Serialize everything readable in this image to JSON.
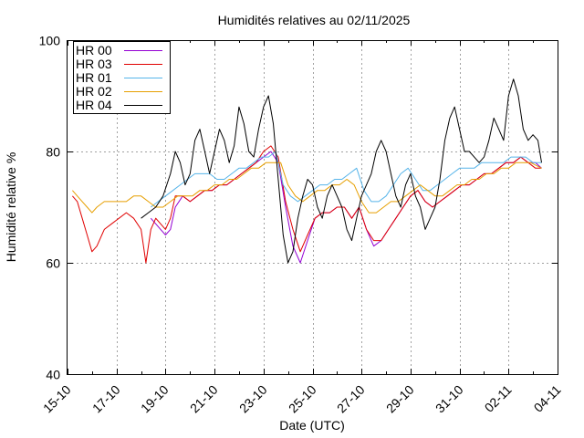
{
  "chart_data": {
    "type": "line",
    "title": "Humidités relatives  au 02/11/2025",
    "xlabel": "Date (UTC)",
    "ylabel": "Humidité relative %",
    "ylim": [
      40,
      100
    ],
    "xlim_days": [
      0,
      20
    ],
    "yticks": [
      40,
      60,
      80,
      100
    ],
    "xticks": [
      {
        "day": 0,
        "label": "15-10"
      },
      {
        "day": 2,
        "label": "17-10"
      },
      {
        "day": 4,
        "label": "19-10"
      },
      {
        "day": 6,
        "label": "21-10"
      },
      {
        "day": 8,
        "label": "23-10"
      },
      {
        "day": 10,
        "label": "25-10"
      },
      {
        "day": 12,
        "label": "27-10"
      },
      {
        "day": 14,
        "label": "29-10"
      },
      {
        "day": 16,
        "label": "31-10"
      },
      {
        "day": 18,
        "label": "02-11"
      },
      {
        "day": 20,
        "label": "04-11"
      }
    ],
    "grid": true,
    "legend_position": "top-left",
    "series": [
      {
        "name": "HR 00",
        "color": "#9400d3",
        "x": [
          3.4,
          3.6,
          3.8,
          4.0,
          4.2,
          4.4,
          4.7,
          5.0,
          5.3,
          5.6,
          5.9,
          6.2,
          6.5,
          6.8,
          7.1,
          7.4,
          7.7,
          8.0,
          8.3,
          8.6,
          8.9,
          9.2,
          9.5,
          9.8,
          10.1,
          10.4,
          10.7,
          11.0,
          11.3,
          11.6,
          11.9,
          12.2,
          12.5,
          12.8,
          13.1,
          13.4,
          13.7,
          14.0,
          14.3,
          14.6,
          14.9,
          15.2,
          15.5,
          15.8,
          16.1,
          16.4,
          16.7,
          17.0,
          17.3,
          17.6,
          17.9,
          18.2,
          18.5,
          18.8,
          19.1,
          19.35
        ],
        "y": [
          68,
          67,
          66,
          65,
          66,
          70,
          72,
          71,
          72,
          73,
          73,
          74,
          74,
          75,
          76,
          77,
          78,
          79,
          80,
          78,
          70,
          63,
          60,
          64,
          68,
          69,
          69,
          70,
          70,
          68,
          70,
          66,
          63,
          64,
          66,
          68,
          70,
          72,
          73,
          71,
          70,
          71,
          72,
          73,
          74,
          74,
          75,
          76,
          76,
          77,
          78,
          78,
          79,
          78,
          78,
          77
        ]
      },
      {
        "name": "HR 03",
        "color": "#e00000",
        "x": [
          0.2,
          0.4,
          0.6,
          0.8,
          1.0,
          1.2,
          1.5,
          1.8,
          2.1,
          2.4,
          2.7,
          3.0,
          3.2,
          3.4,
          3.6,
          3.8,
          4.0,
          4.2,
          4.4,
          4.7,
          5.0,
          5.3,
          5.6,
          5.9,
          6.2,
          6.5,
          6.8,
          7.1,
          7.4,
          7.7,
          8.0,
          8.3,
          8.6,
          8.9,
          9.2,
          9.5,
          9.8,
          10.1,
          10.4,
          10.7,
          11.0,
          11.3,
          11.6,
          11.9,
          12.2,
          12.5,
          12.8,
          13.1,
          13.4,
          13.7,
          14.0,
          14.3,
          14.6,
          14.9,
          15.2,
          15.5,
          15.8,
          16.1,
          16.4,
          16.7,
          17.0,
          17.3,
          17.6,
          17.9,
          18.2,
          18.5,
          18.8,
          19.1,
          19.35
        ],
        "y": [
          72,
          71,
          68,
          65,
          62,
          63,
          66,
          67,
          68,
          69,
          68,
          66,
          60,
          66,
          68,
          67,
          66,
          68,
          72,
          72,
          71,
          72,
          73,
          73,
          74,
          74,
          75,
          76,
          77,
          78,
          80,
          81,
          79,
          71,
          66,
          62,
          65,
          68,
          69,
          69,
          70,
          70,
          68,
          70,
          66,
          64,
          64,
          66,
          68,
          70,
          72,
          73,
          71,
          70,
          71,
          72,
          73,
          74,
          74,
          75,
          76,
          76,
          77,
          78,
          78,
          79,
          78,
          77,
          77
        ]
      },
      {
        "name": "HR 01",
        "color": "#56b4e9",
        "x": [
          3.4,
          3.7,
          4.0,
          4.3,
          4.6,
          4.9,
          5.2,
          5.5,
          5.8,
          6.1,
          6.4,
          6.7,
          7.0,
          7.3,
          7.6,
          7.9,
          8.2,
          8.5,
          8.8,
          9.1,
          9.4,
          9.7,
          10.0,
          10.3,
          10.6,
          10.9,
          11.2,
          11.5,
          11.8,
          12.1,
          12.4,
          12.7,
          13.0,
          13.3,
          13.6,
          13.9,
          14.2,
          14.5,
          14.8,
          15.1,
          15.4,
          15.7,
          16.0,
          16.3,
          16.6,
          16.9,
          17.2,
          17.5,
          17.8,
          18.1,
          18.4,
          18.7,
          19.0,
          19.35
        ],
        "y": [
          70,
          71,
          72,
          73,
          74,
          75,
          76,
          76,
          76,
          75,
          75,
          76,
          77,
          77,
          78,
          79,
          79,
          80,
          74,
          72,
          71,
          72,
          73,
          74,
          74,
          75,
          75,
          76,
          77,
          73,
          71,
          71,
          72,
          74,
          76,
          77,
          75,
          73,
          73,
          74,
          75,
          76,
          77,
          77,
          77,
          78,
          78,
          78,
          78,
          79,
          79,
          79,
          78,
          78
        ]
      },
      {
        "name": "HR 02",
        "color": "#e69f00",
        "x": [
          0.2,
          0.4,
          0.6,
          0.8,
          1.0,
          1.2,
          1.5,
          1.8,
          2.1,
          2.4,
          2.7,
          3.0,
          3.3,
          3.6,
          3.9,
          4.2,
          4.5,
          4.8,
          5.1,
          5.4,
          5.7,
          6.0,
          6.3,
          6.6,
          6.9,
          7.2,
          7.5,
          7.8,
          8.1,
          8.4,
          8.7,
          9.0,
          9.3,
          9.6,
          9.9,
          10.2,
          10.5,
          10.8,
          11.1,
          11.4,
          11.7,
          12.0,
          12.3,
          12.6,
          12.9,
          13.2,
          13.5,
          13.8,
          14.1,
          14.4,
          14.7,
          15.0,
          15.3,
          15.6,
          15.9,
          16.2,
          16.5,
          16.8,
          17.1,
          17.4,
          17.7,
          18.0,
          18.3,
          18.6,
          18.9,
          19.35
        ],
        "y": [
          73,
          72,
          71,
          70,
          69,
          70,
          71,
          71,
          71,
          71,
          72,
          72,
          71,
          70,
          70,
          71,
          72,
          72,
          72,
          73,
          73,
          74,
          74,
          75,
          75,
          76,
          77,
          77,
          78,
          78,
          78,
          74,
          72,
          71,
          72,
          73,
          73,
          74,
          74,
          75,
          74,
          71,
          69,
          69,
          70,
          71,
          71,
          72,
          73,
          74,
          73,
          72,
          72,
          73,
          74,
          74,
          75,
          75,
          76,
          76,
          77,
          77,
          78,
          78,
          78,
          77
        ]
      },
      {
        "name": "HR 04",
        "color": "#000000",
        "x": [
          3.0,
          3.3,
          3.6,
          3.9,
          4.2,
          4.4,
          4.6,
          4.8,
          5.0,
          5.2,
          5.4,
          5.6,
          5.8,
          6.0,
          6.2,
          6.4,
          6.6,
          6.8,
          7.0,
          7.2,
          7.4,
          7.6,
          7.8,
          8.0,
          8.2,
          8.4,
          8.6,
          8.8,
          9.0,
          9.2,
          9.4,
          9.6,
          9.8,
          10.0,
          10.2,
          10.4,
          10.6,
          10.8,
          11.0,
          11.2,
          11.4,
          11.6,
          11.8,
          12.0,
          12.2,
          12.4,
          12.6,
          12.8,
          13.0,
          13.2,
          13.4,
          13.6,
          13.8,
          14.0,
          14.2,
          14.4,
          14.6,
          14.8,
          15.0,
          15.2,
          15.4,
          15.6,
          15.8,
          16.0,
          16.2,
          16.4,
          16.6,
          16.8,
          17.0,
          17.2,
          17.4,
          17.6,
          17.8,
          18.0,
          18.2,
          18.4,
          18.6,
          18.8,
          19.0,
          19.2,
          19.35
        ],
        "y": [
          68,
          69,
          70,
          72,
          76,
          80,
          78,
          74,
          76,
          82,
          84,
          80,
          76,
          80,
          84,
          82,
          78,
          81,
          88,
          85,
          80,
          79,
          84,
          88,
          90,
          85,
          75,
          65,
          60,
          62,
          68,
          72,
          75,
          74,
          70,
          68,
          72,
          74,
          72,
          70,
          66,
          64,
          68,
          72,
          74,
          76,
          80,
          82,
          80,
          76,
          72,
          70,
          74,
          76,
          72,
          70,
          66,
          68,
          70,
          75,
          82,
          86,
          88,
          84,
          80,
          80,
          79,
          78,
          79,
          82,
          86,
          84,
          82,
          90,
          93,
          90,
          84,
          82,
          83,
          82,
          78
        ]
      }
    ]
  }
}
